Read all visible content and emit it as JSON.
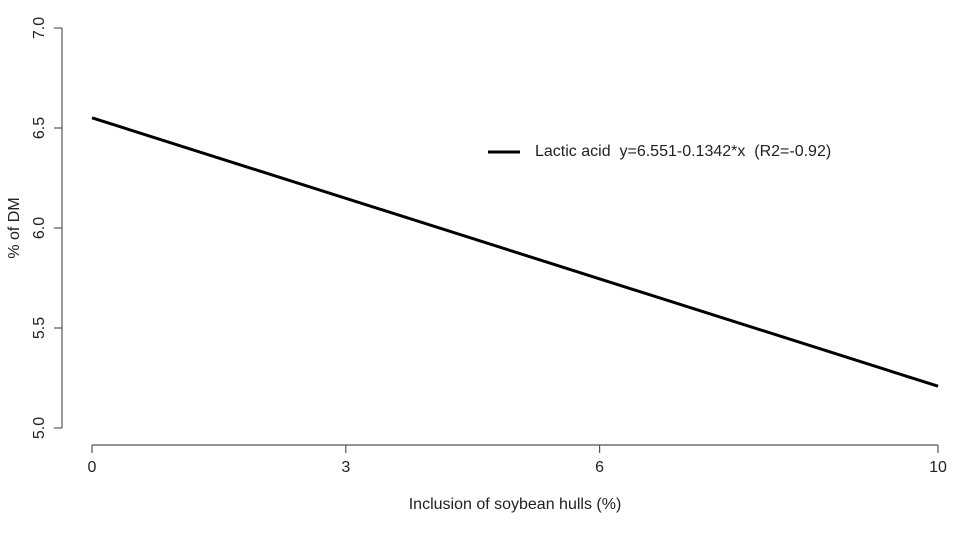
{
  "chart_data": {
    "type": "line",
    "x_label": "Inclusion of soybean hulls (%)",
    "y_label": "% of DM",
    "x": [
      0,
      10
    ],
    "series": [
      {
        "name": "Lactic acid  y=6.551-0.1342*x  (R2=-0.92)",
        "color": "#000000",
        "values": [
          6.551,
          5.209
        ]
      }
    ],
    "xlim": [
      0,
      10
    ],
    "xticks": [
      0,
      3,
      6,
      10
    ],
    "ylim": [
      5,
      7
    ],
    "yticks": [
      {
        "value": 5,
        "label": "5.0"
      },
      5.5,
      {
        "value": 6,
        "label": "6.0"
      },
      6.5,
      {
        "value": 7,
        "label": "7.0"
      }
    ],
    "grid": false,
    "legend": "upper right"
  }
}
